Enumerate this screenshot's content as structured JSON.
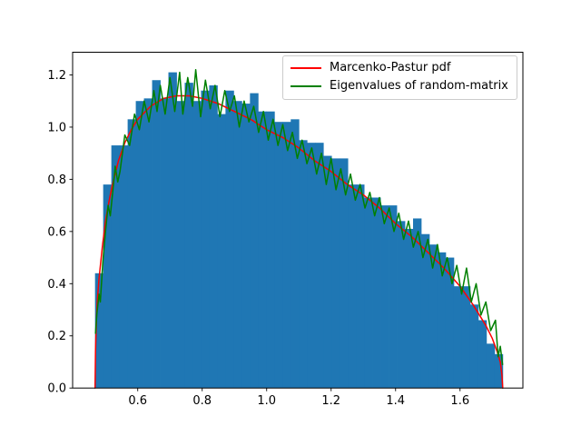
{
  "figure": {
    "background": "#ffffff",
    "axes_background": "#ffffff",
    "spine_color": "#000000",
    "tick_color": "#000000",
    "text_color": "#000000"
  },
  "chart_data": {
    "type": "bar",
    "subtype": "density-histogram-with-line-overlays",
    "title": "",
    "xlabel": "",
    "ylabel": "",
    "xlim": [
      0.398,
      1.795
    ],
    "ylim": [
      0,
      1.287
    ],
    "grid": false,
    "xticks": {
      "values": [
        0.6,
        0.8,
        1.0,
        1.2,
        1.4,
        1.6
      ],
      "labels": [
        "0.6",
        "0.8",
        "1.0",
        "1.2",
        "1.4",
        "1.6"
      ]
    },
    "yticks": {
      "values": [
        0.0,
        0.2,
        0.4,
        0.6,
        0.8,
        1.0,
        1.2
      ],
      "labels": [
        "0.0",
        "0.2",
        "0.4",
        "0.6",
        "0.8",
        "1.0",
        "1.2"
      ]
    },
    "legend": {
      "position": "upper-right",
      "entries": [
        {
          "label": "Marcenko-Pastur pdf",
          "color": "#ff0000"
        },
        {
          "label": "Eigenvalues of random-matrix",
          "color": "#008000"
        }
      ]
    },
    "histogram": {
      "name": "eigenvalue-histogram",
      "color": "#1f77b4",
      "bin_start": 0.4675,
      "bin_width": 0.0253,
      "densities": [
        0.44,
        0.78,
        0.93,
        0.93,
        1.03,
        1.1,
        1.11,
        1.18,
        1.11,
        1.21,
        1.1,
        1.17,
        1.1,
        1.14,
        1.16,
        1.05,
        1.14,
        1.1,
        1.09,
        1.13,
        1.06,
        1.06,
        1.02,
        1.02,
        1.03,
        0.95,
        0.94,
        0.94,
        0.89,
        0.88,
        0.88,
        0.78,
        0.78,
        0.73,
        0.73,
        0.7,
        0.7,
        0.64,
        0.61,
        0.65,
        0.59,
        0.55,
        0.52,
        0.5,
        0.39,
        0.39,
        0.32,
        0.26,
        0.17,
        0.13
      ]
    },
    "series": [
      {
        "name": "Marcenko-Pastur pdf",
        "slug": "marcenko-pastur-line",
        "color": "#ff0000",
        "linewidth": 1.5,
        "x": [
          0.4675,
          0.469,
          0.47,
          0.472,
          0.475,
          0.48,
          0.485,
          0.49,
          0.5,
          0.51,
          0.52,
          0.54,
          0.56,
          0.58,
          0.6,
          0.64,
          0.68,
          0.72,
          0.76,
          0.8,
          0.85,
          0.9,
          0.95,
          1.0,
          1.05,
          1.1,
          1.15,
          1.2,
          1.25,
          1.3,
          1.35,
          1.4,
          1.45,
          1.5,
          1.55,
          1.6,
          1.64,
          1.68,
          1.7,
          1.715,
          1.725,
          1.73,
          1.7325
        ],
        "y": [
          0.0,
          0.14,
          0.19,
          0.27,
          0.34,
          0.42,
          0.48,
          0.54,
          0.64,
          0.71,
          0.77,
          0.87,
          0.94,
          0.99,
          1.03,
          1.08,
          1.11,
          1.12,
          1.12,
          1.11,
          1.09,
          1.06,
          1.03,
          0.99,
          0.96,
          0.92,
          0.87,
          0.83,
          0.78,
          0.74,
          0.69,
          0.63,
          0.58,
          0.52,
          0.46,
          0.39,
          0.32,
          0.24,
          0.19,
          0.14,
          0.1,
          0.05,
          0.0
        ]
      },
      {
        "name": "Eigenvalues of random-matrix",
        "slug": "eigenvalue-density-line",
        "color": "#008000",
        "linewidth": 1.5,
        "x": [
          0.469,
          0.473,
          0.48,
          0.484,
          0.492,
          0.5,
          0.508,
          0.515,
          0.523,
          0.53,
          0.538,
          0.545,
          0.56,
          0.575,
          0.59,
          0.605,
          0.62,
          0.635,
          0.65,
          0.66,
          0.67,
          0.685,
          0.7,
          0.715,
          0.73,
          0.74,
          0.755,
          0.77,
          0.78,
          0.795,
          0.81,
          0.825,
          0.84,
          0.855,
          0.87,
          0.885,
          0.9,
          0.915,
          0.93,
          0.945,
          0.96,
          0.975,
          0.99,
          1.005,
          1.02,
          1.035,
          1.05,
          1.065,
          1.08,
          1.095,
          1.11,
          1.125,
          1.14,
          1.155,
          1.17,
          1.185,
          1.2,
          1.215,
          1.23,
          1.245,
          1.26,
          1.275,
          1.29,
          1.305,
          1.32,
          1.335,
          1.35,
          1.365,
          1.38,
          1.395,
          1.41,
          1.425,
          1.44,
          1.455,
          1.47,
          1.485,
          1.5,
          1.515,
          1.53,
          1.545,
          1.56,
          1.575,
          1.59,
          1.605,
          1.62,
          1.635,
          1.65,
          1.665,
          1.68,
          1.695,
          1.71,
          1.718,
          1.725,
          1.732
        ],
        "y": [
          0.21,
          0.28,
          0.36,
          0.33,
          0.49,
          0.6,
          0.7,
          0.66,
          0.76,
          0.85,
          0.79,
          0.83,
          0.97,
          0.93,
          1.05,
          0.99,
          1.1,
          1.02,
          1.14,
          1.06,
          1.16,
          1.05,
          1.19,
          1.06,
          1.21,
          1.05,
          1.19,
          1.08,
          1.22,
          1.04,
          1.18,
          1.07,
          1.16,
          1.04,
          1.14,
          1.06,
          1.12,
          1.0,
          1.1,
          1.02,
          1.08,
          0.98,
          1.06,
          0.95,
          1.03,
          0.93,
          1.01,
          0.91,
          0.98,
          0.88,
          0.95,
          0.86,
          0.92,
          0.82,
          0.9,
          0.78,
          0.88,
          0.76,
          0.84,
          0.74,
          0.82,
          0.72,
          0.78,
          0.69,
          0.75,
          0.66,
          0.73,
          0.63,
          0.69,
          0.6,
          0.67,
          0.57,
          0.64,
          0.54,
          0.6,
          0.5,
          0.57,
          0.46,
          0.55,
          0.43,
          0.5,
          0.4,
          0.47,
          0.36,
          0.46,
          0.33,
          0.4,
          0.28,
          0.33,
          0.22,
          0.26,
          0.12,
          0.16,
          0.09
        ]
      }
    ]
  }
}
